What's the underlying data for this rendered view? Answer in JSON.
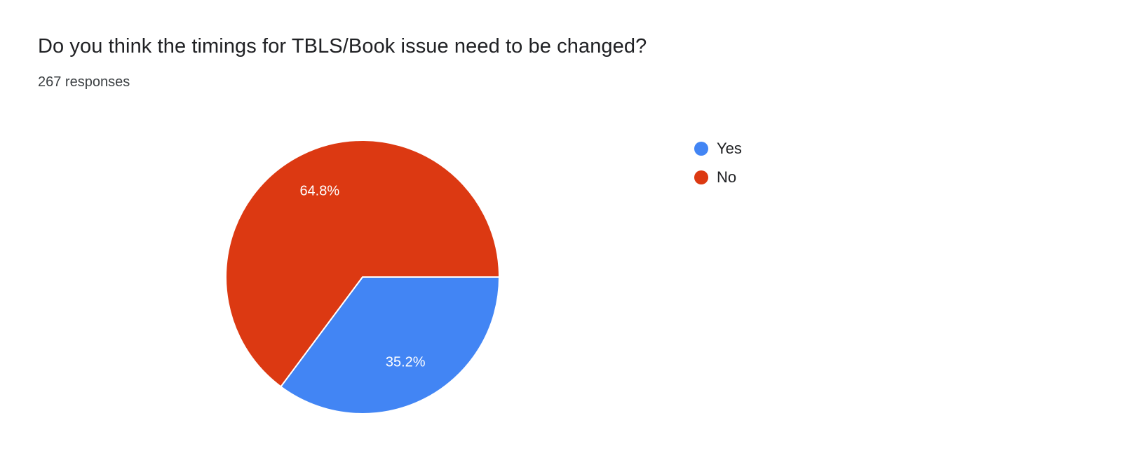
{
  "header": {
    "title": "Do you think the timings for TBLS/Book issue need to be changed?",
    "responses": "267 responses"
  },
  "chart_data": {
    "type": "pie",
    "categories": [
      "Yes",
      "No"
    ],
    "values": [
      35.2,
      64.8
    ],
    "value_labels": [
      "35.2%",
      "64.8%"
    ],
    "colors": [
      "#4285f4",
      "#dc3912"
    ],
    "title": "Do you think the timings for TBLS/Book issue need to be changed?",
    "subtitle": "267 responses",
    "legend_position": "right",
    "start_angle_deg": 90,
    "slice_label_color": "#ffffff",
    "slice_border_color": "#ffffff"
  }
}
